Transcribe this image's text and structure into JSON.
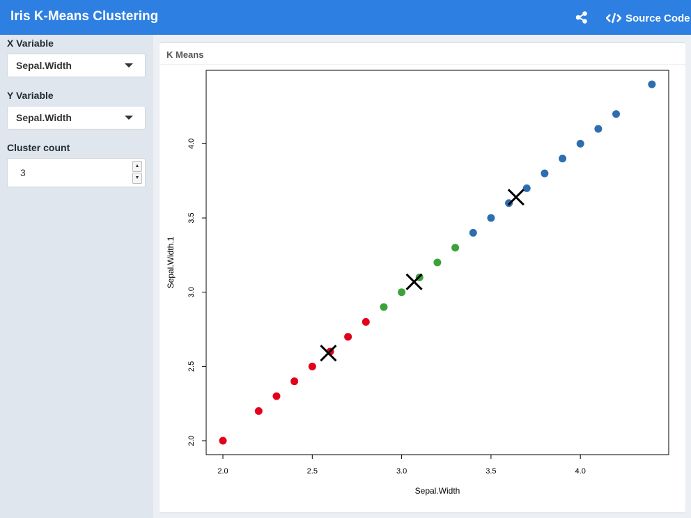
{
  "header": {
    "title": "Iris K-Means Clustering",
    "source_label": "Source Code",
    "background": "#2d7fe1"
  },
  "sidebar": {
    "x_label": "X Variable",
    "x_value": "Sepal.Width",
    "y_label": "Y Variable",
    "y_value": "Sepal.Width",
    "k_label": "Cluster count",
    "k_value": "3"
  },
  "panel": {
    "title": "K Means"
  },
  "chart_data": {
    "type": "scatter",
    "title": "",
    "xlabel": "Sepal.Width",
    "ylabel": "Sepal.Width.1",
    "xlim": [
      2.0,
      4.4
    ],
    "ylim": [
      2.0,
      4.4
    ],
    "xticks": [
      "2.0",
      "2.5",
      "3.0",
      "3.5",
      "4.0"
    ],
    "yticks": [
      "2.0",
      "2.5",
      "3.0",
      "3.5",
      "4.0"
    ],
    "grid": false,
    "series": [
      {
        "color": "#e3001b",
        "points": [
          [
            2.0,
            2.0
          ],
          [
            2.2,
            2.2
          ],
          [
            2.3,
            2.3
          ],
          [
            2.4,
            2.4
          ],
          [
            2.5,
            2.5
          ],
          [
            2.6,
            2.6
          ],
          [
            2.7,
            2.7
          ],
          [
            2.8,
            2.8
          ]
        ]
      },
      {
        "color": "#3aa23a",
        "points": [
          [
            2.9,
            2.9
          ],
          [
            3.0,
            3.0
          ],
          [
            3.1,
            3.1
          ],
          [
            3.2,
            3.2
          ],
          [
            3.3,
            3.3
          ]
        ]
      },
      {
        "color": "#2e6db0",
        "points": [
          [
            3.4,
            3.4
          ],
          [
            3.5,
            3.5
          ],
          [
            3.6,
            3.6
          ],
          [
            3.7,
            3.7
          ],
          [
            3.8,
            3.8
          ],
          [
            3.9,
            3.9
          ],
          [
            4.0,
            4.0
          ],
          [
            4.1,
            4.1
          ],
          [
            4.2,
            4.2
          ],
          [
            4.4,
            4.4
          ]
        ]
      }
    ],
    "centers": [
      [
        2.59,
        2.59
      ],
      [
        3.07,
        3.07
      ],
      [
        3.64,
        3.64
      ]
    ]
  }
}
